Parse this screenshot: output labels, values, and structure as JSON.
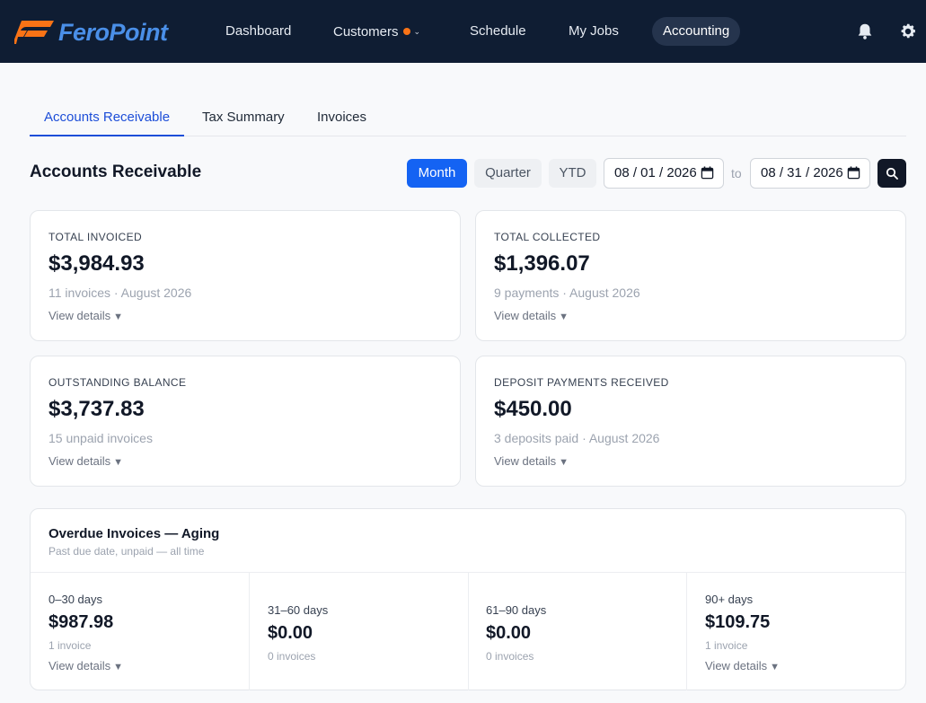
{
  "brand": {
    "name": "FeroPoint",
    "logo_color": "#f97316",
    "text_color": "#4a8fe8"
  },
  "nav": {
    "items": [
      {
        "label": "Dashboard"
      },
      {
        "label": "Customers",
        "has_dot": true,
        "has_dropdown": true
      },
      {
        "label": "Schedule"
      },
      {
        "label": "My Jobs"
      },
      {
        "label": "Accounting",
        "active": true
      }
    ],
    "icons": [
      "bell-icon",
      "gear-icon"
    ]
  },
  "tabs": [
    {
      "label": "Accounts Receivable",
      "active": true
    },
    {
      "label": "Tax Summary"
    },
    {
      "label": "Invoices"
    }
  ],
  "page_title": "Accounts Receivable",
  "period": {
    "options": [
      "Month",
      "Quarter",
      "YTD"
    ],
    "selected": "Month",
    "from_date": "08 / 01 / 2026",
    "to_label": "to",
    "to_date": "08 / 31 / 2026"
  },
  "cards": [
    {
      "label": "Total Invoiced",
      "value": "$3,984.93",
      "sub": "11 invoices · August 2026",
      "link": "View details"
    },
    {
      "label": "Total Collected",
      "value": "$1,396.07",
      "sub": "9 payments · August 2026",
      "link": "View details"
    },
    {
      "label": "Outstanding Balance",
      "value": "$3,737.83",
      "sub": "15 unpaid invoices",
      "link": "View details"
    },
    {
      "label": "Deposit Payments Received",
      "value": "$450.00",
      "sub": "3 deposits paid · August 2026",
      "link": "View details"
    }
  ],
  "aging": {
    "title": "Overdue Invoices — Aging",
    "subtitle": "Past due date, unpaid — all time",
    "buckets": [
      {
        "range": "0–30 days",
        "amount": "$987.98",
        "count": "1 invoice",
        "link": "View details"
      },
      {
        "range": "31–60 days",
        "amount": "$0.00",
        "count": "0 invoices",
        "link": ""
      },
      {
        "range": "61–90 days",
        "amount": "$0.00",
        "count": "0 invoices",
        "link": ""
      },
      {
        "range": "90+ days",
        "amount": "$109.75",
        "count": "1 invoice",
        "link": "View details"
      }
    ]
  },
  "colors": {
    "nav_bg": "#0f1d33",
    "accent": "#1463f3",
    "tab_active": "#1d4ed8",
    "notify_dot": "#f97316"
  }
}
